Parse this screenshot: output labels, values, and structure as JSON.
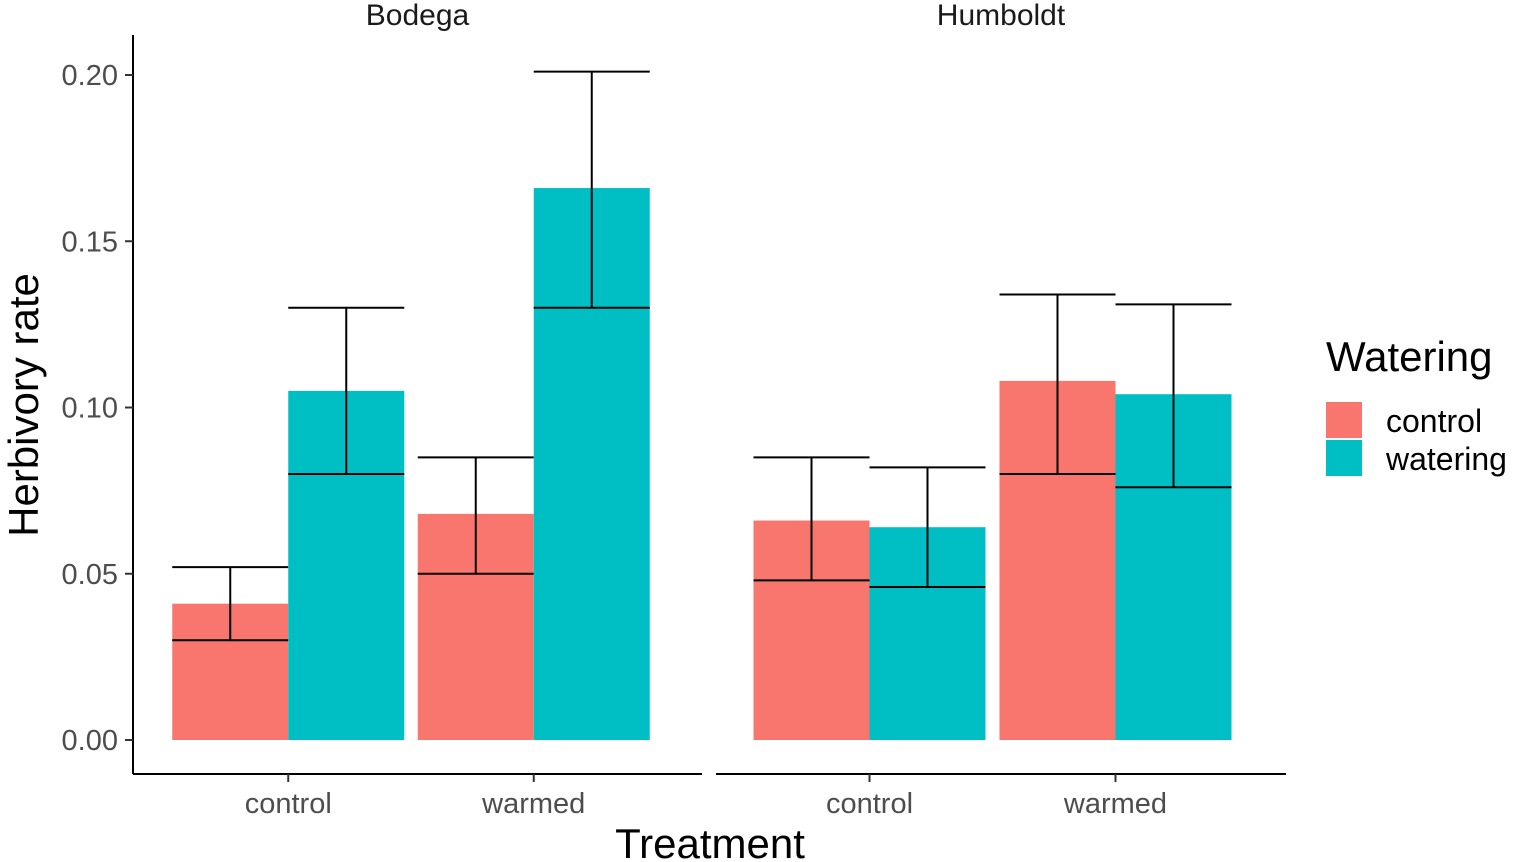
{
  "chart_data": {
    "type": "bar",
    "xlabel": "Treatment",
    "ylabel": "Herbivory rate",
    "ylim": [
      0,
      0.21
    ],
    "yticks": [
      "0.00",
      "0.05",
      "0.10",
      "0.15",
      "0.20"
    ],
    "grid": false,
    "legend": {
      "title": "Watering",
      "placement": "right",
      "entries": [
        {
          "name": "control",
          "color": "#F8766D"
        },
        {
          "name": "watering",
          "color": "#00BFC4"
        }
      ]
    },
    "facets": [
      {
        "title": "Bodega",
        "categories": [
          "control",
          "warmed"
        ],
        "series": [
          {
            "name": "control",
            "color": "#F8766D",
            "values": [
              0.041,
              0.068
            ],
            "err_low": [
              0.03,
              0.05
            ],
            "err_high": [
              0.052,
              0.085
            ]
          },
          {
            "name": "watering",
            "color": "#00BFC4",
            "values": [
              0.105,
              0.166
            ],
            "err_low": [
              0.08,
              0.13
            ],
            "err_high": [
              0.13,
              0.201
            ]
          }
        ]
      },
      {
        "title": "Humboldt",
        "categories": [
          "control",
          "warmed"
        ],
        "series": [
          {
            "name": "control",
            "color": "#F8766D",
            "values": [
              0.066,
              0.108
            ],
            "err_low": [
              0.048,
              0.08
            ],
            "err_high": [
              0.085,
              0.134
            ]
          },
          {
            "name": "watering",
            "color": "#00BFC4",
            "values": [
              0.064,
              0.104
            ],
            "err_low": [
              0.046,
              0.076
            ],
            "err_high": [
              0.082,
              0.131
            ]
          }
        ]
      }
    ]
  }
}
